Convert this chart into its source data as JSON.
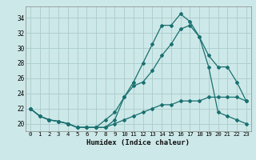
{
  "xlabel": "Humidex (Indice chaleur)",
  "background_color": "#cde8e8",
  "grid_color": "#aacccc",
  "line_color": "#1a7070",
  "xlim": [
    -0.5,
    23.5
  ],
  "ylim": [
    19.0,
    35.5
  ],
  "yticks": [
    20,
    22,
    24,
    26,
    28,
    30,
    32,
    34
  ],
  "xticks": [
    0,
    1,
    2,
    3,
    4,
    5,
    6,
    7,
    8,
    9,
    10,
    11,
    12,
    13,
    14,
    15,
    16,
    17,
    18,
    19,
    20,
    21,
    22,
    23
  ],
  "curve1_x": [
    0,
    1,
    2,
    3,
    4,
    5,
    6,
    7,
    8,
    9,
    10,
    11,
    12,
    13,
    14,
    15,
    16,
    17,
    18,
    19,
    20,
    21,
    22,
    23
  ],
  "curve1_y": [
    22.0,
    21.0,
    20.5,
    20.3,
    20.0,
    19.5,
    19.5,
    19.5,
    19.5,
    20.5,
    23.5,
    25.5,
    28.0,
    30.5,
    33.0,
    33.0,
    34.5,
    33.5,
    31.5,
    29.0,
    27.5,
    27.5,
    25.5,
    23.0
  ],
  "curve2_x": [
    0,
    1,
    2,
    3,
    4,
    5,
    6,
    7,
    8,
    9,
    10,
    11,
    12,
    13,
    14,
    15,
    16,
    17,
    18,
    19,
    20,
    21,
    22,
    23
  ],
  "curve2_y": [
    22.0,
    21.0,
    20.5,
    20.3,
    20.0,
    19.5,
    19.5,
    19.5,
    20.5,
    21.5,
    23.5,
    25.0,
    25.5,
    27.0,
    29.0,
    30.5,
    32.5,
    33.0,
    31.5,
    27.5,
    21.5,
    21.0,
    20.5,
    20.0
  ],
  "curve3_x": [
    0,
    1,
    2,
    3,
    4,
    5,
    6,
    7,
    8,
    9,
    10,
    11,
    12,
    13,
    14,
    15,
    16,
    17,
    18,
    19,
    20,
    21,
    22,
    23
  ],
  "curve3_y": [
    22.0,
    21.0,
    20.5,
    20.3,
    20.0,
    19.5,
    19.5,
    19.5,
    19.5,
    20.0,
    20.5,
    21.0,
    21.5,
    22.0,
    22.5,
    22.5,
    23.0,
    23.0,
    23.0,
    23.5,
    23.5,
    23.5,
    23.5,
    23.0
  ]
}
